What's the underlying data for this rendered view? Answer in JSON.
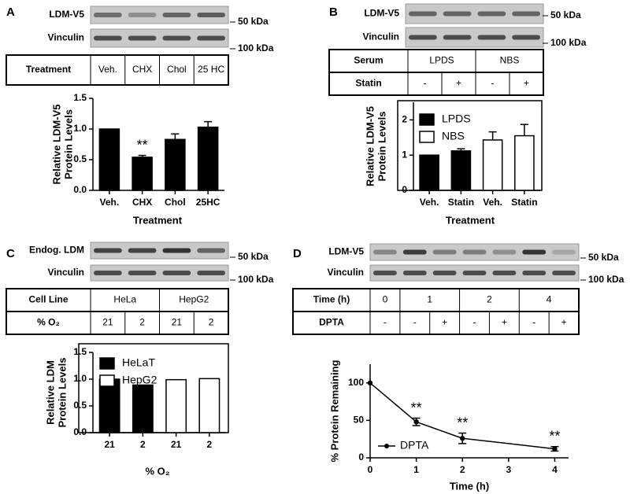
{
  "chart_data": [
    {
      "type": "bar",
      "categories": [
        "Veh.",
        "CHX",
        "Chol",
        "25HC"
      ],
      "values": [
        1.0,
        0.54,
        0.83,
        1.03
      ],
      "errors": [
        0,
        0.03,
        0.09,
        0.09
      ],
      "color": "#000000",
      "annotations": [
        null,
        "**",
        null,
        null
      ],
      "ylabel": [
        "Relative LDM-V5",
        "Protein Levels"
      ],
      "xlabel": "Treatment",
      "ylim": [
        0,
        1.5
      ],
      "yticks": [
        {
          "value": 0,
          "label": "0.0"
        },
        0.5,
        {
          "value": 1,
          "label": "1.0"
        },
        1.5
      ]
    },
    {
      "type": "bar",
      "categories": [
        "Veh.",
        "Statin",
        "Veh.",
        "Statin"
      ],
      "series": [
        {
          "name": "LPDS",
          "color": "#000000",
          "values": [
            1.0,
            1.12,
            null,
            null
          ],
          "errors": [
            0,
            0.06,
            null,
            null
          ]
        },
        {
          "name": "NBS",
          "color": "#ffffff",
          "values": [
            null,
            null,
            1.43,
            1.55
          ],
          "errors": [
            null,
            null,
            0.23,
            0.32
          ]
        }
      ],
      "legend": "upper left",
      "ylabel": [
        "Relative LDM-V5",
        "Protein Levels"
      ],
      "xlabel": "Treatment",
      "ylim": [
        0,
        2.5
      ],
      "yticks": [
        0,
        1,
        2
      ]
    },
    {
      "type": "bar",
      "categories": [
        "21",
        "2",
        "21",
        "2"
      ],
      "series": [
        {
          "name": "HeLaT",
          "color": "#000000",
          "values": [
            1.0,
            0.89,
            null,
            null
          ]
        },
        {
          "name": "HepG2",
          "color": "#ffffff",
          "values": [
            null,
            null,
            0.99,
            1.01
          ]
        }
      ],
      "legend": "upper left",
      "ylabel": [
        "Relative LDM",
        "Protein Levels"
      ],
      "xlabel": "% O₂",
      "ylim": [
        0,
        1.5
      ],
      "yticks": [
        {
          "value": 0,
          "label": "0.0"
        },
        0.5,
        {
          "value": 1,
          "label": "1.0"
        },
        1.5
      ]
    },
    {
      "type": "line",
      "x": [
        0,
        1,
        2,
        4
      ],
      "series": [
        {
          "name": "DPTA",
          "color": "#000000",
          "values": [
            100,
            48,
            26,
            12
          ],
          "errors": [
            0,
            5,
            7,
            3
          ]
        }
      ],
      "annotations": [
        null,
        "**",
        "**",
        "**"
      ],
      "legend": "lower left",
      "ylabel": [
        "% Protein Remaining"
      ],
      "xlabel": "Time (h)",
      "xlim": [
        0,
        4.3
      ],
      "xticks": [
        0,
        1,
        2,
        3,
        4
      ],
      "ylim": [
        0,
        125
      ],
      "yticks": [
        0,
        50,
        100
      ]
    }
  ],
  "panels": [
    {
      "label": "A",
      "blots": [
        "LDM-V5",
        "Vinculin"
      ],
      "markers": [
        "50 kDa",
        "100 kDa"
      ],
      "table": [
        [
          "Treatment",
          "Veh.",
          "CHX",
          "Chol",
          "25 HC"
        ]
      ]
    },
    {
      "label": "B",
      "blots": [
        "LDM-V5",
        "Vinculin"
      ],
      "markers": [
        "50 kDa",
        "100 kDa"
      ],
      "table": [
        [
          "Serum",
          "LPDS",
          "NBS"
        ],
        [
          "Statin",
          "-",
          "+",
          "-",
          "+"
        ]
      ]
    },
    {
      "label": "C",
      "blots": [
        "Endog. LDM",
        "Vinculin"
      ],
      "markers": [
        "50 kDa",
        "100 kDa"
      ],
      "table": [
        [
          "Cell Line",
          "HeLa",
          "HepG2"
        ],
        [
          "% O₂",
          "21",
          "2",
          "21",
          "2"
        ]
      ]
    },
    {
      "label": "D",
      "blots": [
        "LDM-V5",
        "Vinculin"
      ],
      "markers": [
        "50 kDa",
        "100 kDa"
      ],
      "table": [
        [
          "Time (h)",
          "0",
          "1",
          "2",
          "4"
        ],
        [
          "DPTA",
          "-",
          "-",
          "+",
          "-",
          "+",
          "-",
          "+"
        ]
      ]
    }
  ]
}
